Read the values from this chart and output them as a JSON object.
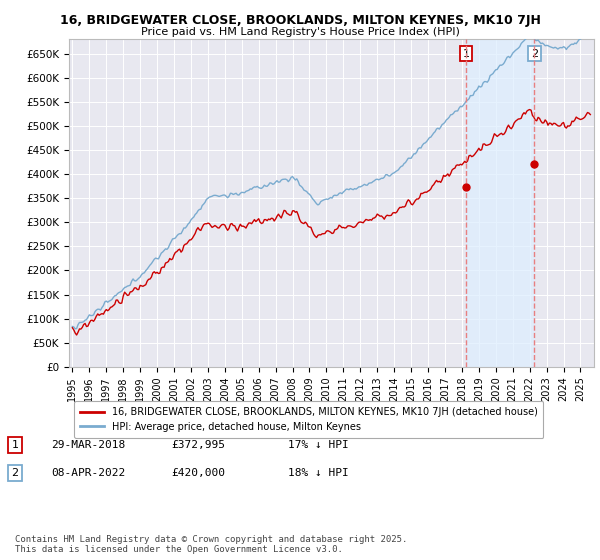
{
  "title": "16, BRIDGEWATER CLOSE, BROOKLANDS, MILTON KEYNES, MK10 7JH",
  "subtitle": "Price paid vs. HM Land Registry's House Price Index (HPI)",
  "background_color": "#ffffff",
  "plot_bg_color": "#e8e8f0",
  "grid_color": "#ffffff",
  "legend_label_red": "16, BRIDGEWATER CLOSE, BROOKLANDS, MILTON KEYNES, MK10 7JH (detached house)",
  "legend_label_blue": "HPI: Average price, detached house, Milton Keynes",
  "annotation1_date": "29-MAR-2018",
  "annotation1_price": "£372,995",
  "annotation1_hpi": "17% ↓ HPI",
  "annotation2_date": "08-APR-2022",
  "annotation2_price": "£420,000",
  "annotation2_hpi": "18% ↓ HPI",
  "footer": "Contains HM Land Registry data © Crown copyright and database right 2025.\nThis data is licensed under the Open Government Licence v3.0.",
  "red_color": "#cc0000",
  "blue_color": "#7aabcf",
  "dashed_color": "#e88080",
  "shade_color": "#ddeeff",
  "ylim": [
    0,
    680000
  ],
  "yticks": [
    0,
    50000,
    100000,
    150000,
    200000,
    250000,
    300000,
    350000,
    400000,
    450000,
    500000,
    550000,
    600000,
    650000
  ],
  "ytick_labels": [
    "£0",
    "£50K",
    "£100K",
    "£150K",
    "£200K",
    "£250K",
    "£300K",
    "£350K",
    "£400K",
    "£450K",
    "£500K",
    "£550K",
    "£600K",
    "£650K"
  ],
  "xlim_left": 1994.8,
  "xlim_right": 2025.8
}
